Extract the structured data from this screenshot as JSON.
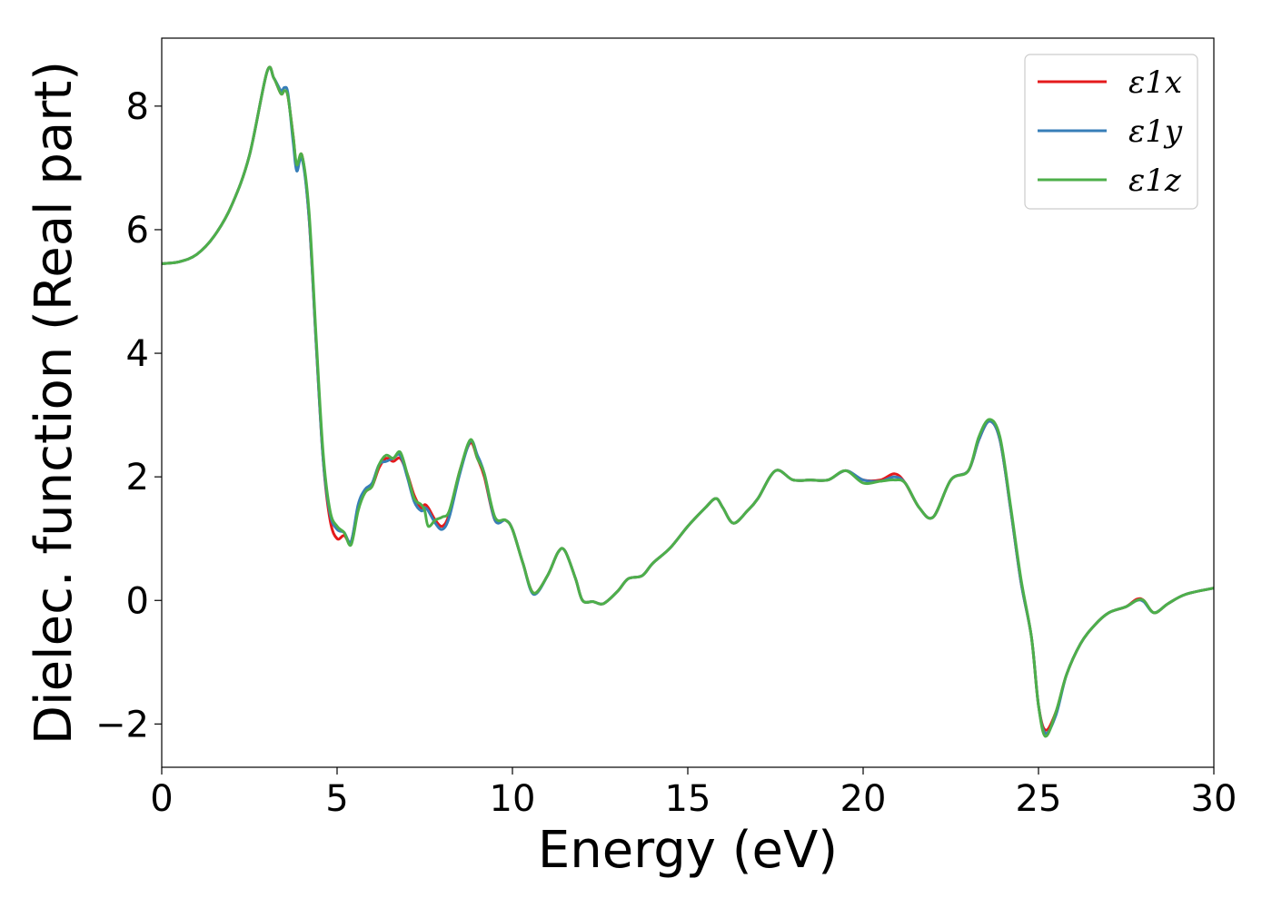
{
  "chart_data": {
    "type": "line",
    "xlabel": "Energy (eV)",
    "ylabel": "Dielec. function (Real part)",
    "xlim": [
      0,
      30
    ],
    "ylim": [
      -2.7,
      9.1
    ],
    "xticks": [
      0,
      5,
      10,
      15,
      20,
      25,
      30
    ],
    "yticks": [
      -2,
      0,
      2,
      4,
      6,
      8
    ],
    "xtick_labels": [
      "0",
      "5",
      "10",
      "15",
      "20",
      "25",
      "30"
    ],
    "ytick_labels": [
      "−2",
      "0",
      "2",
      "4",
      "6",
      "8"
    ],
    "grid": false,
    "legend_position": "top-right",
    "series": [
      {
        "name": "ε1x",
        "color": "#e41a1c",
        "points": [
          [
            0,
            5.45
          ],
          [
            0.5,
            5.48
          ],
          [
            1.0,
            5.6
          ],
          [
            1.5,
            5.9
          ],
          [
            2.0,
            6.4
          ],
          [
            2.5,
            7.2
          ],
          [
            3.0,
            8.55
          ],
          [
            3.2,
            8.45
          ],
          [
            3.4,
            8.2
          ],
          [
            3.5,
            8.25
          ],
          [
            3.6,
            8.15
          ],
          [
            3.75,
            7.5
          ],
          [
            3.85,
            7.0
          ],
          [
            4.0,
            7.2
          ],
          [
            4.2,
            6.2
          ],
          [
            4.4,
            4.2
          ],
          [
            4.6,
            2.3
          ],
          [
            4.8,
            1.3
          ],
          [
            5.0,
            1.0
          ],
          [
            5.2,
            1.05
          ],
          [
            5.4,
            0.95
          ],
          [
            5.6,
            1.5
          ],
          [
            5.8,
            1.75
          ],
          [
            6.0,
            1.85
          ],
          [
            6.2,
            2.15
          ],
          [
            6.4,
            2.3
          ],
          [
            6.6,
            2.25
          ],
          [
            6.8,
            2.3
          ],
          [
            7.0,
            2.05
          ],
          [
            7.2,
            1.7
          ],
          [
            7.4,
            1.5
          ],
          [
            7.5,
            1.55
          ],
          [
            7.6,
            1.5
          ],
          [
            7.8,
            1.3
          ],
          [
            8.0,
            1.2
          ],
          [
            8.2,
            1.4
          ],
          [
            8.5,
            2.1
          ],
          [
            8.8,
            2.55
          ],
          [
            9.0,
            2.3
          ],
          [
            9.2,
            2.0
          ],
          [
            9.5,
            1.3
          ],
          [
            9.8,
            1.3
          ],
          [
            10.0,
            1.15
          ],
          [
            10.3,
            0.6
          ],
          [
            10.6,
            0.12
          ],
          [
            11.0,
            0.4
          ],
          [
            11.3,
            0.78
          ],
          [
            11.5,
            0.8
          ],
          [
            11.8,
            0.35
          ],
          [
            12.0,
            0.0
          ],
          [
            12.3,
            -0.02
          ],
          [
            12.6,
            -0.05
          ],
          [
            13.0,
            0.15
          ],
          [
            13.3,
            0.35
          ],
          [
            13.7,
            0.4
          ],
          [
            14.0,
            0.6
          ],
          [
            14.5,
            0.85
          ],
          [
            15.0,
            1.2
          ],
          [
            15.5,
            1.5
          ],
          [
            15.8,
            1.65
          ],
          [
            16.0,
            1.5
          ],
          [
            16.3,
            1.25
          ],
          [
            16.7,
            1.45
          ],
          [
            17.0,
            1.65
          ],
          [
            17.5,
            2.1
          ],
          [
            18.0,
            1.95
          ],
          [
            18.5,
            1.95
          ],
          [
            19.0,
            1.95
          ],
          [
            19.5,
            2.1
          ],
          [
            20.0,
            1.95
          ],
          [
            20.5,
            1.95
          ],
          [
            20.9,
            2.05
          ],
          [
            21.2,
            1.9
          ],
          [
            21.6,
            1.5
          ],
          [
            22.0,
            1.35
          ],
          [
            22.5,
            1.95
          ],
          [
            23.0,
            2.1
          ],
          [
            23.3,
            2.6
          ],
          [
            23.6,
            2.9
          ],
          [
            23.9,
            2.6
          ],
          [
            24.2,
            1.5
          ],
          [
            24.5,
            0.3
          ],
          [
            24.8,
            -0.6
          ],
          [
            25.0,
            -1.7
          ],
          [
            25.2,
            -2.1
          ],
          [
            25.5,
            -1.8
          ],
          [
            25.8,
            -1.2
          ],
          [
            26.2,
            -0.7
          ],
          [
            26.6,
            -0.4
          ],
          [
            27.0,
            -0.2
          ],
          [
            27.5,
            -0.1
          ],
          [
            27.8,
            0.02
          ],
          [
            28.0,
            0.0
          ],
          [
            28.3,
            -0.2
          ],
          [
            28.7,
            -0.05
          ],
          [
            29.2,
            0.1
          ],
          [
            30.0,
            0.2
          ]
        ]
      },
      {
        "name": "ε1y",
        "color": "#377eb8",
        "points": [
          [
            0,
            5.45
          ],
          [
            0.5,
            5.48
          ],
          [
            1.0,
            5.6
          ],
          [
            1.5,
            5.9
          ],
          [
            2.0,
            6.4
          ],
          [
            2.5,
            7.2
          ],
          [
            3.0,
            8.55
          ],
          [
            3.2,
            8.45
          ],
          [
            3.4,
            8.25
          ],
          [
            3.5,
            8.3
          ],
          [
            3.6,
            8.2
          ],
          [
            3.75,
            7.4
          ],
          [
            3.85,
            6.95
          ],
          [
            4.0,
            7.15
          ],
          [
            4.2,
            6.2
          ],
          [
            4.4,
            4.2
          ],
          [
            4.6,
            2.3
          ],
          [
            4.8,
            1.4
          ],
          [
            5.0,
            1.15
          ],
          [
            5.2,
            1.1
          ],
          [
            5.4,
            0.95
          ],
          [
            5.6,
            1.55
          ],
          [
            5.8,
            1.8
          ],
          [
            6.0,
            1.9
          ],
          [
            6.2,
            2.2
          ],
          [
            6.4,
            2.25
          ],
          [
            6.6,
            2.3
          ],
          [
            6.8,
            2.35
          ],
          [
            7.0,
            2.0
          ],
          [
            7.2,
            1.6
          ],
          [
            7.4,
            1.45
          ],
          [
            7.5,
            1.5
          ],
          [
            7.6,
            1.45
          ],
          [
            7.8,
            1.25
          ],
          [
            8.0,
            1.15
          ],
          [
            8.2,
            1.35
          ],
          [
            8.5,
            2.05
          ],
          [
            8.8,
            2.58
          ],
          [
            9.0,
            2.35
          ],
          [
            9.2,
            2.05
          ],
          [
            9.5,
            1.3
          ],
          [
            9.8,
            1.3
          ],
          [
            10.0,
            1.15
          ],
          [
            10.3,
            0.6
          ],
          [
            10.6,
            0.1
          ],
          [
            11.0,
            0.4
          ],
          [
            11.3,
            0.78
          ],
          [
            11.5,
            0.8
          ],
          [
            11.8,
            0.35
          ],
          [
            12.0,
            0.0
          ],
          [
            12.3,
            -0.02
          ],
          [
            12.6,
            -0.05
          ],
          [
            13.0,
            0.15
          ],
          [
            13.3,
            0.35
          ],
          [
            13.7,
            0.4
          ],
          [
            14.0,
            0.6
          ],
          [
            14.5,
            0.85
          ],
          [
            15.0,
            1.2
          ],
          [
            15.5,
            1.5
          ],
          [
            15.8,
            1.65
          ],
          [
            16.0,
            1.5
          ],
          [
            16.3,
            1.25
          ],
          [
            16.7,
            1.45
          ],
          [
            17.0,
            1.65
          ],
          [
            17.5,
            2.1
          ],
          [
            18.0,
            1.95
          ],
          [
            18.5,
            1.95
          ],
          [
            19.0,
            1.95
          ],
          [
            19.5,
            2.1
          ],
          [
            20.0,
            1.95
          ],
          [
            20.5,
            1.93
          ],
          [
            20.9,
            2.0
          ],
          [
            21.2,
            1.9
          ],
          [
            21.6,
            1.5
          ],
          [
            22.0,
            1.35
          ],
          [
            22.5,
            1.95
          ],
          [
            23.0,
            2.1
          ],
          [
            23.3,
            2.6
          ],
          [
            23.6,
            2.9
          ],
          [
            23.9,
            2.6
          ],
          [
            24.2,
            1.5
          ],
          [
            24.5,
            0.3
          ],
          [
            24.8,
            -0.6
          ],
          [
            25.0,
            -1.7
          ],
          [
            25.2,
            -2.15
          ],
          [
            25.5,
            -1.85
          ],
          [
            25.8,
            -1.2
          ],
          [
            26.2,
            -0.7
          ],
          [
            26.6,
            -0.4
          ],
          [
            27.0,
            -0.2
          ],
          [
            27.5,
            -0.1
          ],
          [
            27.8,
            0.0
          ],
          [
            28.0,
            -0.02
          ],
          [
            28.3,
            -0.2
          ],
          [
            28.7,
            -0.05
          ],
          [
            29.2,
            0.1
          ],
          [
            30.0,
            0.2
          ]
        ]
      },
      {
        "name": "ε1z",
        "color": "#4daf4a",
        "points": [
          [
            0,
            5.45
          ],
          [
            0.5,
            5.48
          ],
          [
            1.0,
            5.6
          ],
          [
            1.5,
            5.9
          ],
          [
            2.0,
            6.4
          ],
          [
            2.5,
            7.2
          ],
          [
            3.0,
            8.55
          ],
          [
            3.2,
            8.45
          ],
          [
            3.4,
            8.2
          ],
          [
            3.5,
            8.25
          ],
          [
            3.6,
            8.15
          ],
          [
            3.75,
            7.5
          ],
          [
            3.85,
            7.05
          ],
          [
            4.0,
            7.2
          ],
          [
            4.2,
            6.3
          ],
          [
            4.4,
            4.3
          ],
          [
            4.6,
            2.4
          ],
          [
            4.8,
            1.45
          ],
          [
            5.0,
            1.2
          ],
          [
            5.2,
            1.1
          ],
          [
            5.4,
            0.9
          ],
          [
            5.6,
            1.45
          ],
          [
            5.8,
            1.75
          ],
          [
            6.0,
            1.85
          ],
          [
            6.2,
            2.2
          ],
          [
            6.4,
            2.35
          ],
          [
            6.6,
            2.3
          ],
          [
            6.8,
            2.4
          ],
          [
            7.0,
            2.05
          ],
          [
            7.2,
            1.65
          ],
          [
            7.4,
            1.55
          ],
          [
            7.5,
            1.45
          ],
          [
            7.6,
            1.2
          ],
          [
            7.8,
            1.3
          ],
          [
            8.0,
            1.35
          ],
          [
            8.2,
            1.45
          ],
          [
            8.5,
            2.1
          ],
          [
            8.8,
            2.6
          ],
          [
            9.0,
            2.3
          ],
          [
            9.2,
            2.05
          ],
          [
            9.5,
            1.35
          ],
          [
            9.8,
            1.3
          ],
          [
            10.0,
            1.15
          ],
          [
            10.3,
            0.6
          ],
          [
            10.6,
            0.12
          ],
          [
            11.0,
            0.4
          ],
          [
            11.3,
            0.78
          ],
          [
            11.5,
            0.8
          ],
          [
            11.8,
            0.35
          ],
          [
            12.0,
            0.0
          ],
          [
            12.3,
            -0.02
          ],
          [
            12.6,
            -0.05
          ],
          [
            13.0,
            0.15
          ],
          [
            13.3,
            0.35
          ],
          [
            13.7,
            0.4
          ],
          [
            14.0,
            0.6
          ],
          [
            14.5,
            0.85
          ],
          [
            15.0,
            1.2
          ],
          [
            15.5,
            1.5
          ],
          [
            15.8,
            1.65
          ],
          [
            16.0,
            1.5
          ],
          [
            16.3,
            1.25
          ],
          [
            16.7,
            1.45
          ],
          [
            17.0,
            1.65
          ],
          [
            17.5,
            2.1
          ],
          [
            18.0,
            1.95
          ],
          [
            18.5,
            1.95
          ],
          [
            19.0,
            1.95
          ],
          [
            19.5,
            2.1
          ],
          [
            20.0,
            1.9
          ],
          [
            20.5,
            1.93
          ],
          [
            20.9,
            1.95
          ],
          [
            21.2,
            1.9
          ],
          [
            21.6,
            1.5
          ],
          [
            22.0,
            1.35
          ],
          [
            22.5,
            1.95
          ],
          [
            23.0,
            2.1
          ],
          [
            23.3,
            2.65
          ],
          [
            23.6,
            2.93
          ],
          [
            23.9,
            2.65
          ],
          [
            24.2,
            1.55
          ],
          [
            24.5,
            0.35
          ],
          [
            24.8,
            -0.6
          ],
          [
            25.0,
            -1.7
          ],
          [
            25.2,
            -2.2
          ],
          [
            25.5,
            -1.8
          ],
          [
            25.8,
            -1.2
          ],
          [
            26.2,
            -0.7
          ],
          [
            26.6,
            -0.4
          ],
          [
            27.0,
            -0.2
          ],
          [
            27.5,
            -0.1
          ],
          [
            27.8,
            0.0
          ],
          [
            28.0,
            0.0
          ],
          [
            28.3,
            -0.2
          ],
          [
            28.7,
            -0.05
          ],
          [
            29.2,
            0.1
          ],
          [
            30.0,
            0.2
          ]
        ]
      }
    ]
  }
}
